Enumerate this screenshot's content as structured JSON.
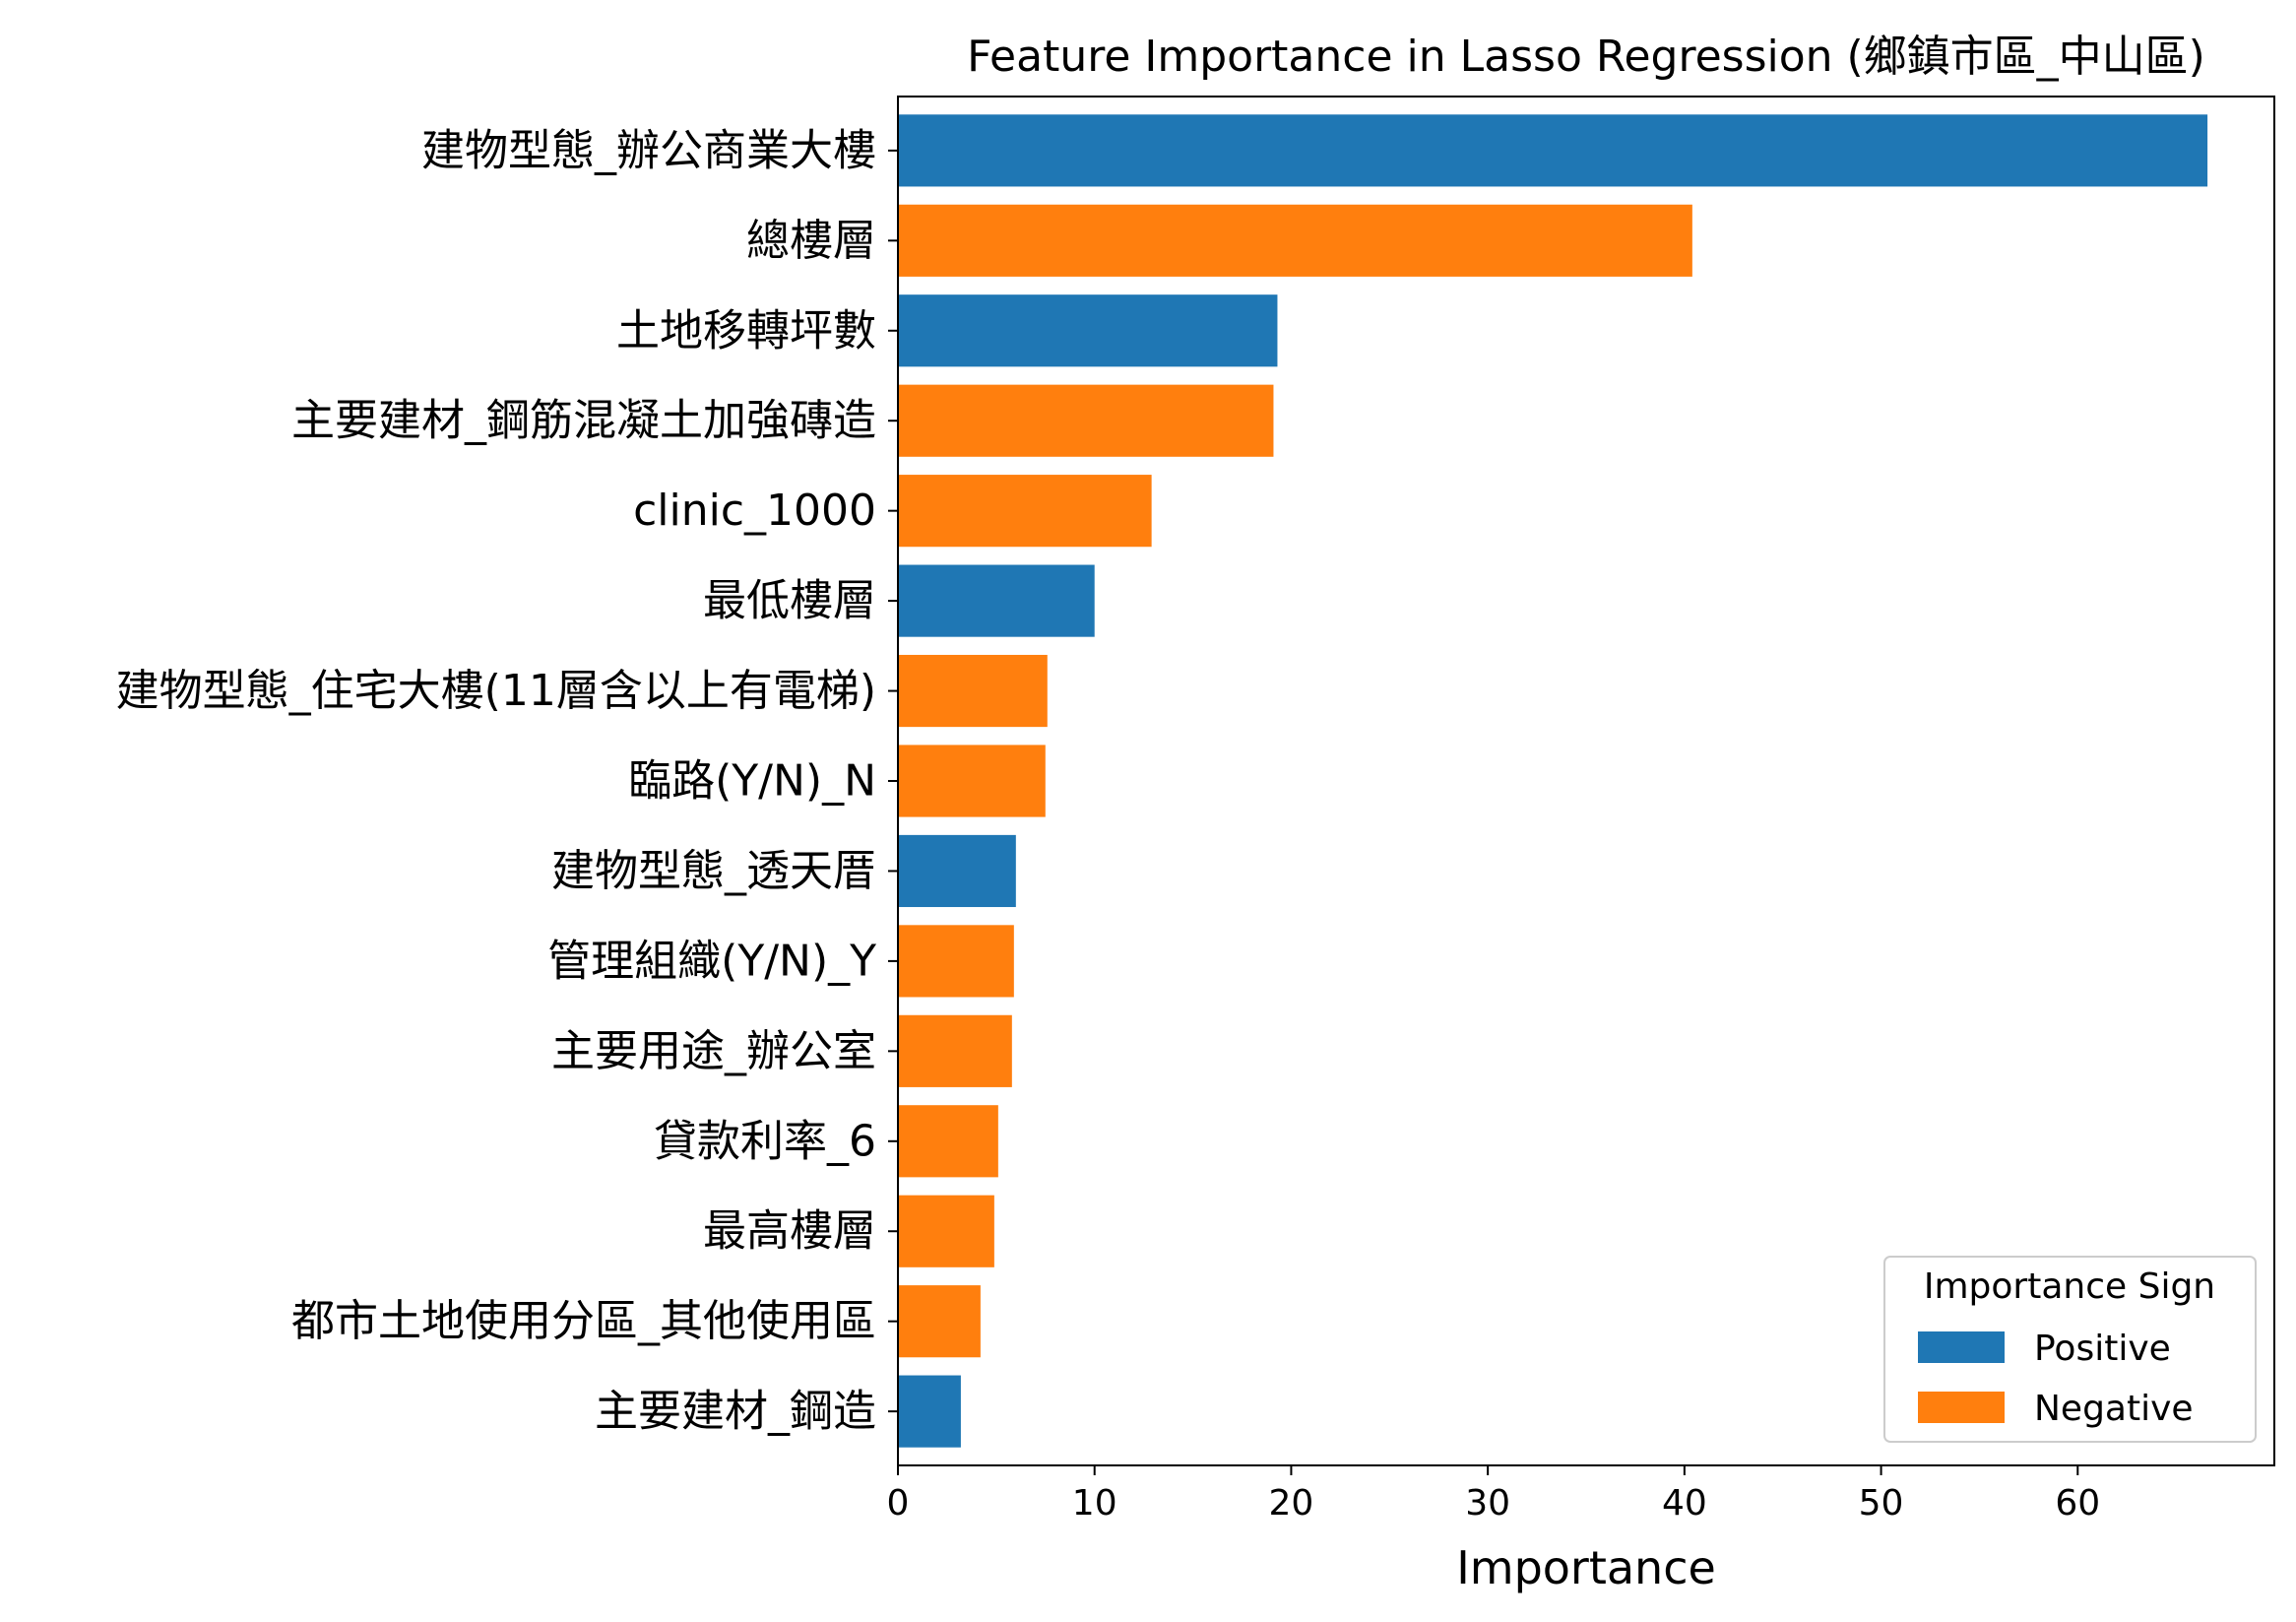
{
  "chart_data": {
    "type": "bar",
    "orientation": "horizontal",
    "title": "Feature Importance in Lasso Regression (鄉鎮市區_中山區)",
    "xlabel": "Importance",
    "ylabel": "",
    "xlim": [
      0,
      70
    ],
    "xticks": [
      0,
      10,
      20,
      30,
      40,
      50,
      60
    ],
    "grid": false,
    "colors": {
      "Positive": "#1f77b4",
      "Negative": "#ff7f0e"
    },
    "legend": {
      "title": "Importance Sign",
      "position": "bottom-right",
      "entries": [
        "Positive",
        "Negative"
      ]
    },
    "bars": [
      {
        "label": "建物型態_辦公商業大樓",
        "value": 66.6,
        "sign": "Positive"
      },
      {
        "label": "總樓層",
        "value": 40.4,
        "sign": "Negative"
      },
      {
        "label": "土地移轉坪數",
        "value": 19.3,
        "sign": "Positive"
      },
      {
        "label": "主要建材_鋼筋混凝土加強磚造",
        "value": 19.1,
        "sign": "Negative"
      },
      {
        "label": "clinic_1000",
        "value": 12.9,
        "sign": "Negative"
      },
      {
        "label": "最低樓層",
        "value": 10.0,
        "sign": "Positive"
      },
      {
        "label": "建物型態_住宅大樓(11層含以上有電梯)",
        "value": 7.6,
        "sign": "Negative"
      },
      {
        "label": "臨路(Y/N)_N",
        "value": 7.5,
        "sign": "Negative"
      },
      {
        "label": "建物型態_透天厝",
        "value": 6.0,
        "sign": "Positive"
      },
      {
        "label": "管理組織(Y/N)_Y",
        "value": 5.9,
        "sign": "Negative"
      },
      {
        "label": "主要用途_辦公室",
        "value": 5.8,
        "sign": "Negative"
      },
      {
        "label": "貸款利率_6",
        "value": 5.1,
        "sign": "Negative"
      },
      {
        "label": "最高樓層",
        "value": 4.9,
        "sign": "Negative"
      },
      {
        "label": "都市土地使用分區_其他使用區",
        "value": 4.2,
        "sign": "Negative"
      },
      {
        "label": "主要建材_鋼造",
        "value": 3.2,
        "sign": "Positive"
      }
    ]
  }
}
